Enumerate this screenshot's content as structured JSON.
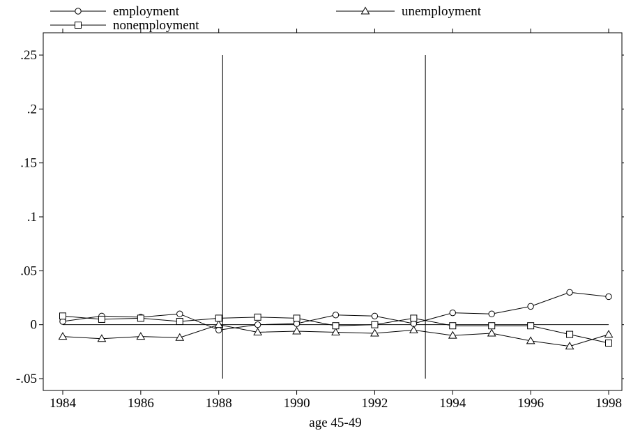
{
  "chart_data": {
    "type": "line",
    "xlabel": "age 45-49",
    "ylabel": "",
    "x": [
      1984,
      1985,
      1986,
      1987,
      1988,
      1989,
      1990,
      1991,
      1992,
      1993,
      1994,
      1995,
      1996,
      1997,
      1998
    ],
    "xlim": [
      1984,
      1998
    ],
    "ylim": [
      -0.05,
      0.25
    ],
    "x_ticks": [
      1984,
      1986,
      1988,
      1990,
      1992,
      1994,
      1996,
      1998
    ],
    "x_tick_labels": [
      "1984",
      "1986",
      "1988",
      "1990",
      "1992",
      "1994",
      "1996",
      "1998"
    ],
    "y_ticks": [
      -0.05,
      0,
      0.05,
      0.1,
      0.15,
      0.2,
      0.25
    ],
    "y_tick_labels": [
      "-.05",
      "0",
      ".05",
      ".1",
      ".15",
      ".2",
      ".25"
    ],
    "zero_line": 0,
    "vertical_lines": [
      1988.1,
      1993.3
    ],
    "vertical_lines_yrange": [
      -0.05,
      0.25
    ],
    "grid": false,
    "legend_position": "top",
    "series": [
      {
        "name": "employment",
        "marker": "circle",
        "values": [
          0.003,
          0.008,
          0.007,
          0.01,
          -0.005,
          0.0,
          0.001,
          0.009,
          0.008,
          0.001,
          0.011,
          0.01,
          0.017,
          0.03,
          0.026
        ]
      },
      {
        "name": "unemployment",
        "marker": "triangle",
        "values": [
          -0.011,
          -0.013,
          -0.011,
          -0.012,
          0.0,
          -0.007,
          -0.006,
          -0.007,
          -0.008,
          -0.005,
          -0.01,
          -0.008,
          -0.015,
          -0.02,
          -0.009
        ]
      },
      {
        "name": "nonemployment",
        "marker": "square",
        "values": [
          0.008,
          0.005,
          0.006,
          0.003,
          0.006,
          0.007,
          0.006,
          -0.001,
          0.0,
          0.006,
          -0.001,
          -0.001,
          -0.001,
          -0.009,
          -0.017
        ]
      }
    ]
  }
}
